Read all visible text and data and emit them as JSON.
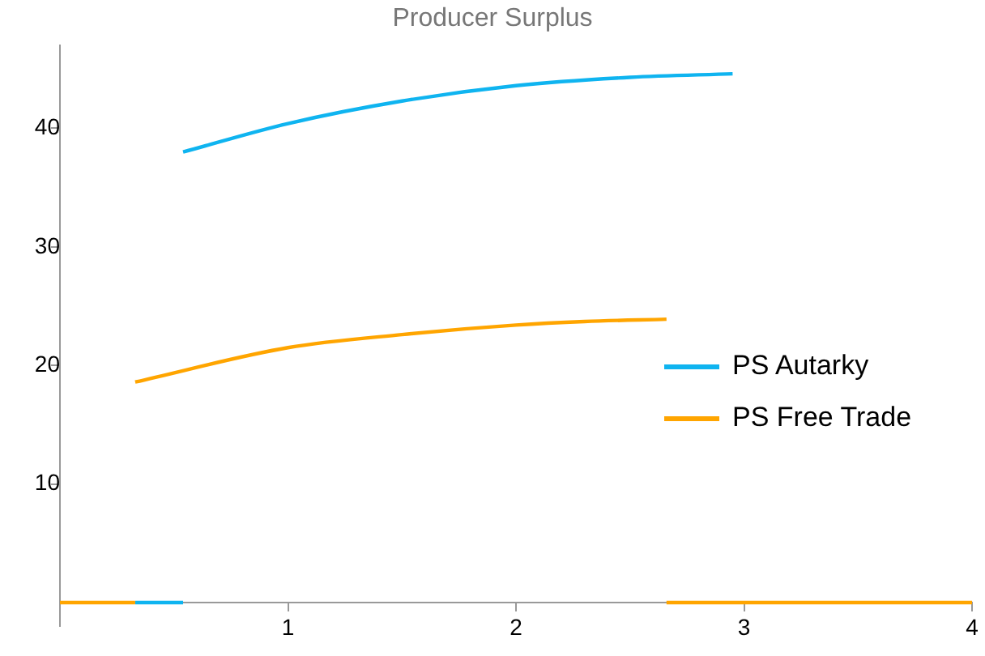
{
  "chart_data": {
    "type": "line",
    "title": "Producer Surplus",
    "xlim": [
      0,
      4
    ],
    "xticks": [
      1,
      2,
      3,
      4
    ],
    "ylim": [
      -2,
      47
    ],
    "yticks": [
      10,
      20,
      30,
      40
    ],
    "grid": false,
    "legend": "right",
    "marker": "none",
    "line_style": "solid",
    "series": [
      {
        "name": "PS Autarky",
        "color": "#0fb4f0",
        "x": [
          0.54,
          1,
          1.5,
          2,
          2.5,
          2.95
        ],
        "values": [
          38,
          40.4,
          42.3,
          43.6,
          44.3,
          44.6
        ]
      },
      {
        "color": "#0fb4f0",
        "x": [
          0.33,
          0.54
        ],
        "values": [
          0,
          0
        ]
      },
      {
        "name": "PS Free Trade",
        "color": "#ffa500",
        "x": [
          0.33,
          1,
          1.5,
          2,
          2.3,
          2.66
        ],
        "values": [
          18.6,
          21.5,
          22.6,
          23.4,
          23.7,
          23.9
        ]
      },
      {
        "color": "#ffa500",
        "x": [
          0,
          0.33
        ],
        "values": [
          0,
          0
        ]
      },
      {
        "color": "#ffa500",
        "x": [
          2.66,
          4
        ],
        "values": [
          0,
          0
        ]
      }
    ]
  }
}
